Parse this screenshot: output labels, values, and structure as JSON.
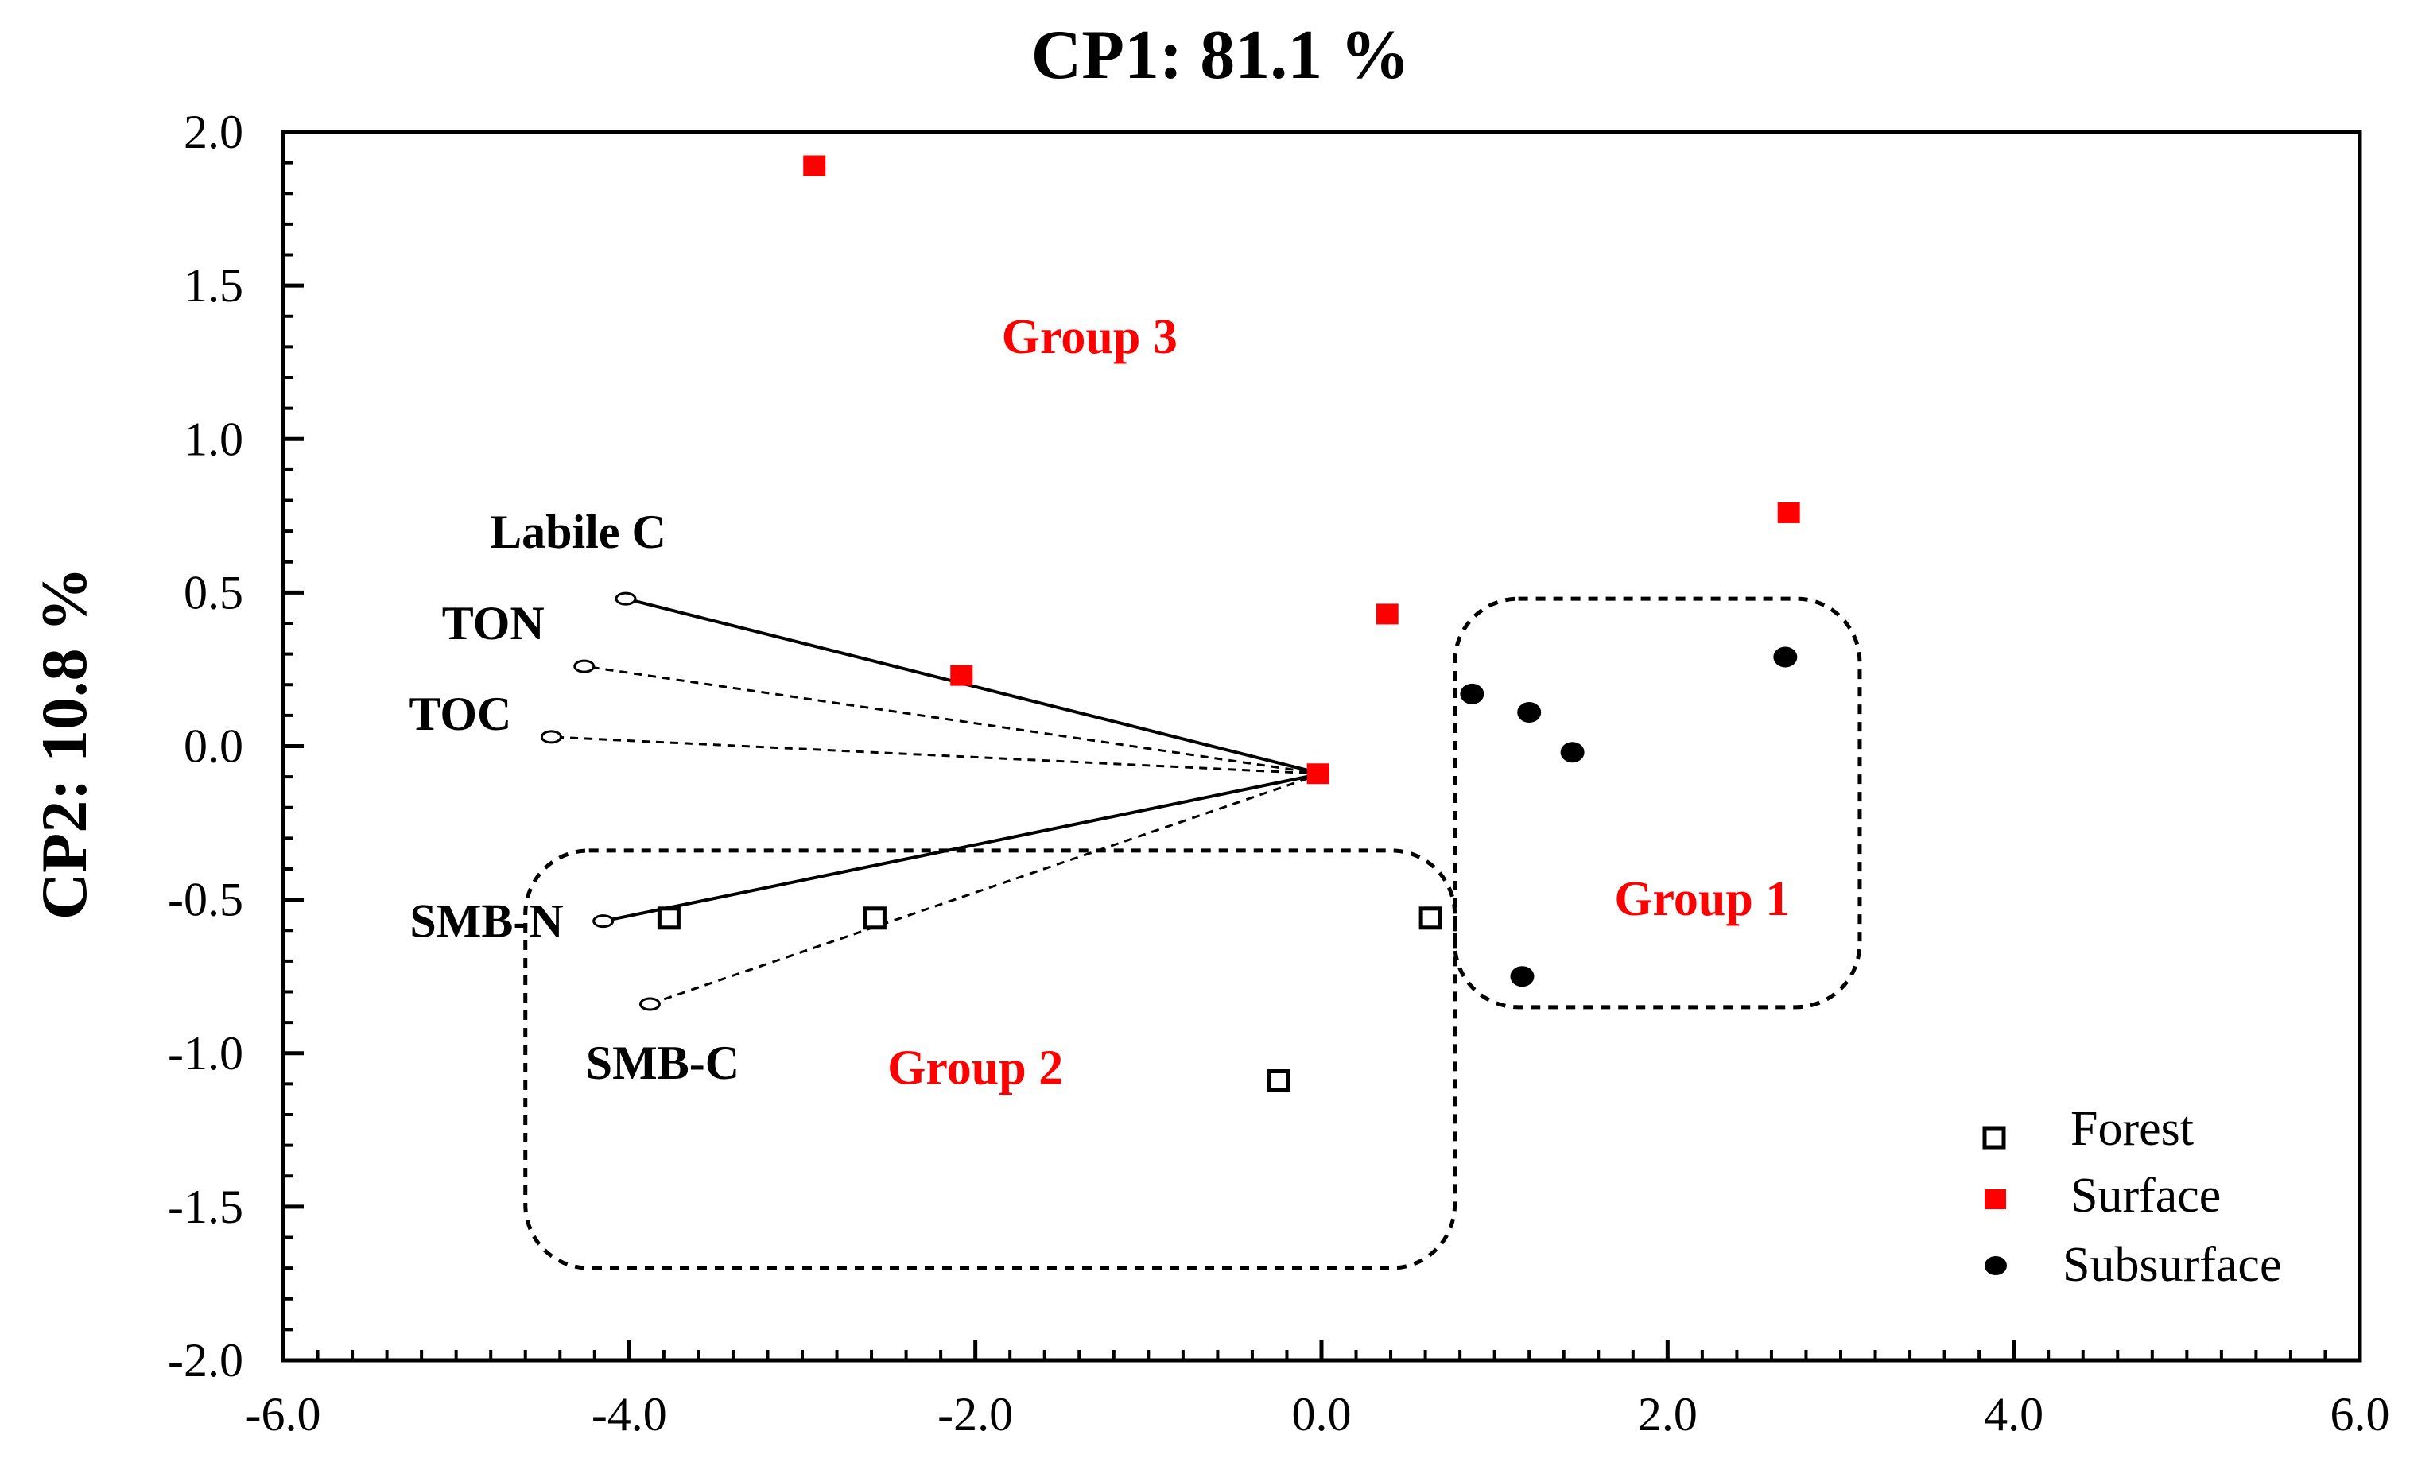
{
  "chart_data": {
    "type": "scatter",
    "title": "CP1: 81.1 %",
    "xlabel": "",
    "ylabel": "CP2: 10.8 %",
    "xlim": [
      -6.0,
      6.0
    ],
    "ylim": [
      -2.0,
      2.0
    ],
    "x_ticks": [
      "-6.0",
      "-4.0",
      "-2.0",
      "0.0",
      "2.0",
      "4.0",
      "6.0"
    ],
    "y_ticks": [
      "2.0",
      "1.5",
      "1.0",
      "0.5",
      "0.0",
      "-0.5",
      "-1.0",
      "-1.5",
      "-2.0"
    ],
    "series": [
      {
        "name": "Forest",
        "marker": "open-square",
        "color": "#000000",
        "points": [
          [
            -3.77,
            -0.56
          ],
          [
            -2.58,
            -0.56
          ],
          [
            0.63,
            -0.56
          ],
          [
            -0.25,
            -1.09
          ]
        ]
      },
      {
        "name": "Surface",
        "marker": "filled-square",
        "color": "#ff0000",
        "points": [
          [
            -2.93,
            1.89
          ],
          [
            -2.08,
            0.23
          ],
          [
            0.38,
            0.43
          ],
          [
            -0.02,
            -0.09
          ],
          [
            2.7,
            0.76
          ]
        ]
      },
      {
        "name": "Subsurface",
        "marker": "filled-circle",
        "color": "#000000",
        "points": [
          [
            0.87,
            0.17
          ],
          [
            1.2,
            0.11
          ],
          [
            1.45,
            -0.02
          ],
          [
            2.68,
            0.29
          ],
          [
            1.16,
            -0.75
          ]
        ]
      }
    ],
    "loading_origin": [
      0.0,
      -0.09
    ],
    "loadings": [
      {
        "name": "Labile C",
        "x": -4.02,
        "y": 0.48
      },
      {
        "name": "TON",
        "x": -4.26,
        "y": 0.26
      },
      {
        "name": "TOC",
        "x": -4.45,
        "y": 0.03
      },
      {
        "name": "SMB-N",
        "x": -4.15,
        "y": -0.57
      },
      {
        "name": "SMB-C",
        "x": -3.88,
        "y": -0.84
      }
    ],
    "groups": [
      {
        "name": "Group 1",
        "x_range": [
          0.77,
          3.11
        ],
        "y_range": [
          -0.85,
          0.48
        ],
        "label_x": 2.2,
        "label_y": -0.55
      },
      {
        "name": "Group 2",
        "x_range": [
          -4.6,
          0.77
        ],
        "y_range": [
          -1.7,
          -0.34
        ],
        "label_x": -2.0,
        "label_y": -1.1
      },
      {
        "name": "Group 3",
        "label_x": -1.34,
        "label_y": 1.28
      }
    ],
    "group_label_color": "#ff0000",
    "legend_position": "bottom-right"
  }
}
